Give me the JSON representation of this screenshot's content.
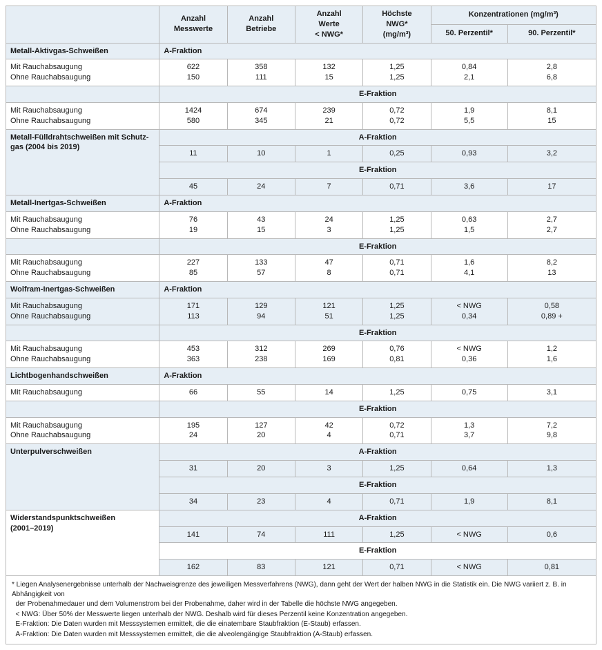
{
  "colors": {
    "header_bg": "#e6eef5",
    "border": "#b8b8b8",
    "text": "#1a1a1a"
  },
  "headers": {
    "col0": "",
    "col1": "Anzahl\nMesswerte",
    "col2": "Anzahl\nBetriebe",
    "col3": "Anzahl\nWerte\n< NWG*",
    "col4": "Höchste\nNWG*\n(mg/m³)",
    "konz": "Konzentrationen (mg/m³)",
    "p50": "50. Perzentil*",
    "p90": "90. Perzentil*"
  },
  "labels": {
    "mit": "Mit Rauchabsaugung",
    "ohne": "Ohne Rauchabsaugung",
    "afrac": "A-Fraktion",
    "efrac": "E-Fraktion"
  },
  "sections": {
    "mag": "Metall-Aktivgas-Schweißen",
    "fuell": "Metall-Fülldrahtschweißen mit Schutz-\ngas (2004 bis 2019)",
    "mig": "Metall-Inertgas-Schweißen",
    "wig": "Wolfram-Inertgas-Schweißen",
    "lbh": "Lichtbogenhandschweißen",
    "up": "Unterpulverschweißen",
    "wp": "Widerstandspunktschweißen\n(2001–2019)"
  },
  "d": {
    "mag_a_mit": [
      "622",
      "358",
      "132",
      "1,25",
      "0,84",
      "2,8"
    ],
    "mag_a_ohne": [
      "150",
      "111",
      "15",
      "1,25",
      "2,1",
      "6,8"
    ],
    "mag_e_mit": [
      "1424",
      "674",
      "239",
      "0,72",
      "1,9",
      "8,1"
    ],
    "mag_e_ohne": [
      "580",
      "345",
      "21",
      "0,72",
      "5,5",
      "15"
    ],
    "fuell_a": [
      "11",
      "10",
      "1",
      "0,25",
      "0,93",
      "3,2"
    ],
    "fuell_e": [
      "45",
      "24",
      "7",
      "0,71",
      "3,6",
      "17"
    ],
    "mig_a_mit": [
      "76",
      "43",
      "24",
      "1,25",
      "0,63",
      "2,7"
    ],
    "mig_a_ohne": [
      "19",
      "15",
      "3",
      "1,25",
      "1,5",
      "2,7"
    ],
    "mig_e_mit": [
      "227",
      "133",
      "47",
      "0,71",
      "1,6",
      "8,2"
    ],
    "mig_e_ohne": [
      "85",
      "57",
      "8",
      "0,71",
      "4,1",
      "13"
    ],
    "wig_a_mit": [
      "171",
      "129",
      "121",
      "1,25",
      "< NWG",
      "0,58"
    ],
    "wig_a_ohne": [
      "113",
      "94",
      "51",
      "1,25",
      "0,34",
      "0,89 +"
    ],
    "wig_e_mit": [
      "453",
      "312",
      "269",
      "0,76",
      "< NWG",
      "1,2"
    ],
    "wig_e_ohne": [
      "363",
      "238",
      "169",
      "0,81",
      "0,36",
      "1,6"
    ],
    "lbh_a_mit": [
      "66",
      "55",
      "14",
      "1,25",
      "0,75",
      "3,1"
    ],
    "lbh_e_mit": [
      "195",
      "127",
      "42",
      "0,72",
      "1,3",
      "7,2"
    ],
    "lbh_e_ohne": [
      "24",
      "20",
      "4",
      "0,71",
      "3,7",
      "9,8"
    ],
    "up_a": [
      "31",
      "20",
      "3",
      "1,25",
      "0,64",
      "1,3"
    ],
    "up_e": [
      "34",
      "23",
      "4",
      "0,71",
      "1,9",
      "8,1"
    ],
    "wp_a": [
      "141",
      "74",
      "111",
      "1,25",
      "< NWG",
      "0,6"
    ],
    "wp_e": [
      "162",
      "83",
      "121",
      "0,71",
      "< NWG",
      "0,81"
    ]
  },
  "footnotes": {
    "f1": "* Liegen Analysenergebnisse unterhalb der Nachweisgrenze des jeweiligen Messverfahrens (NWG), dann geht der Wert der halben NWG in die Statistik ein. Die NWG variiert z. B. in Abhängigkeit von",
    "f2": "  der Probenahmedauer und dem Volumenstrom bei der Probenahme, daher wird in der Tabelle die höchste NWG angegeben.",
    "f3": "  < NWG: Über 50% der Messwerte liegen unterhalb der NWG. Deshalb wird für dieses Perzentil keine Konzentration angegeben.",
    "f4": "  E-Fraktion: Die Daten wurden mit Messsystemen ermittelt, die die einatembare Staubfraktion (E-Staub) erfassen.",
    "f5": "  A-Fraktion: Die Daten wurden mit Messsystemen ermittelt, die die alveolengängige Staubfraktion (A-Staub) erfassen."
  }
}
